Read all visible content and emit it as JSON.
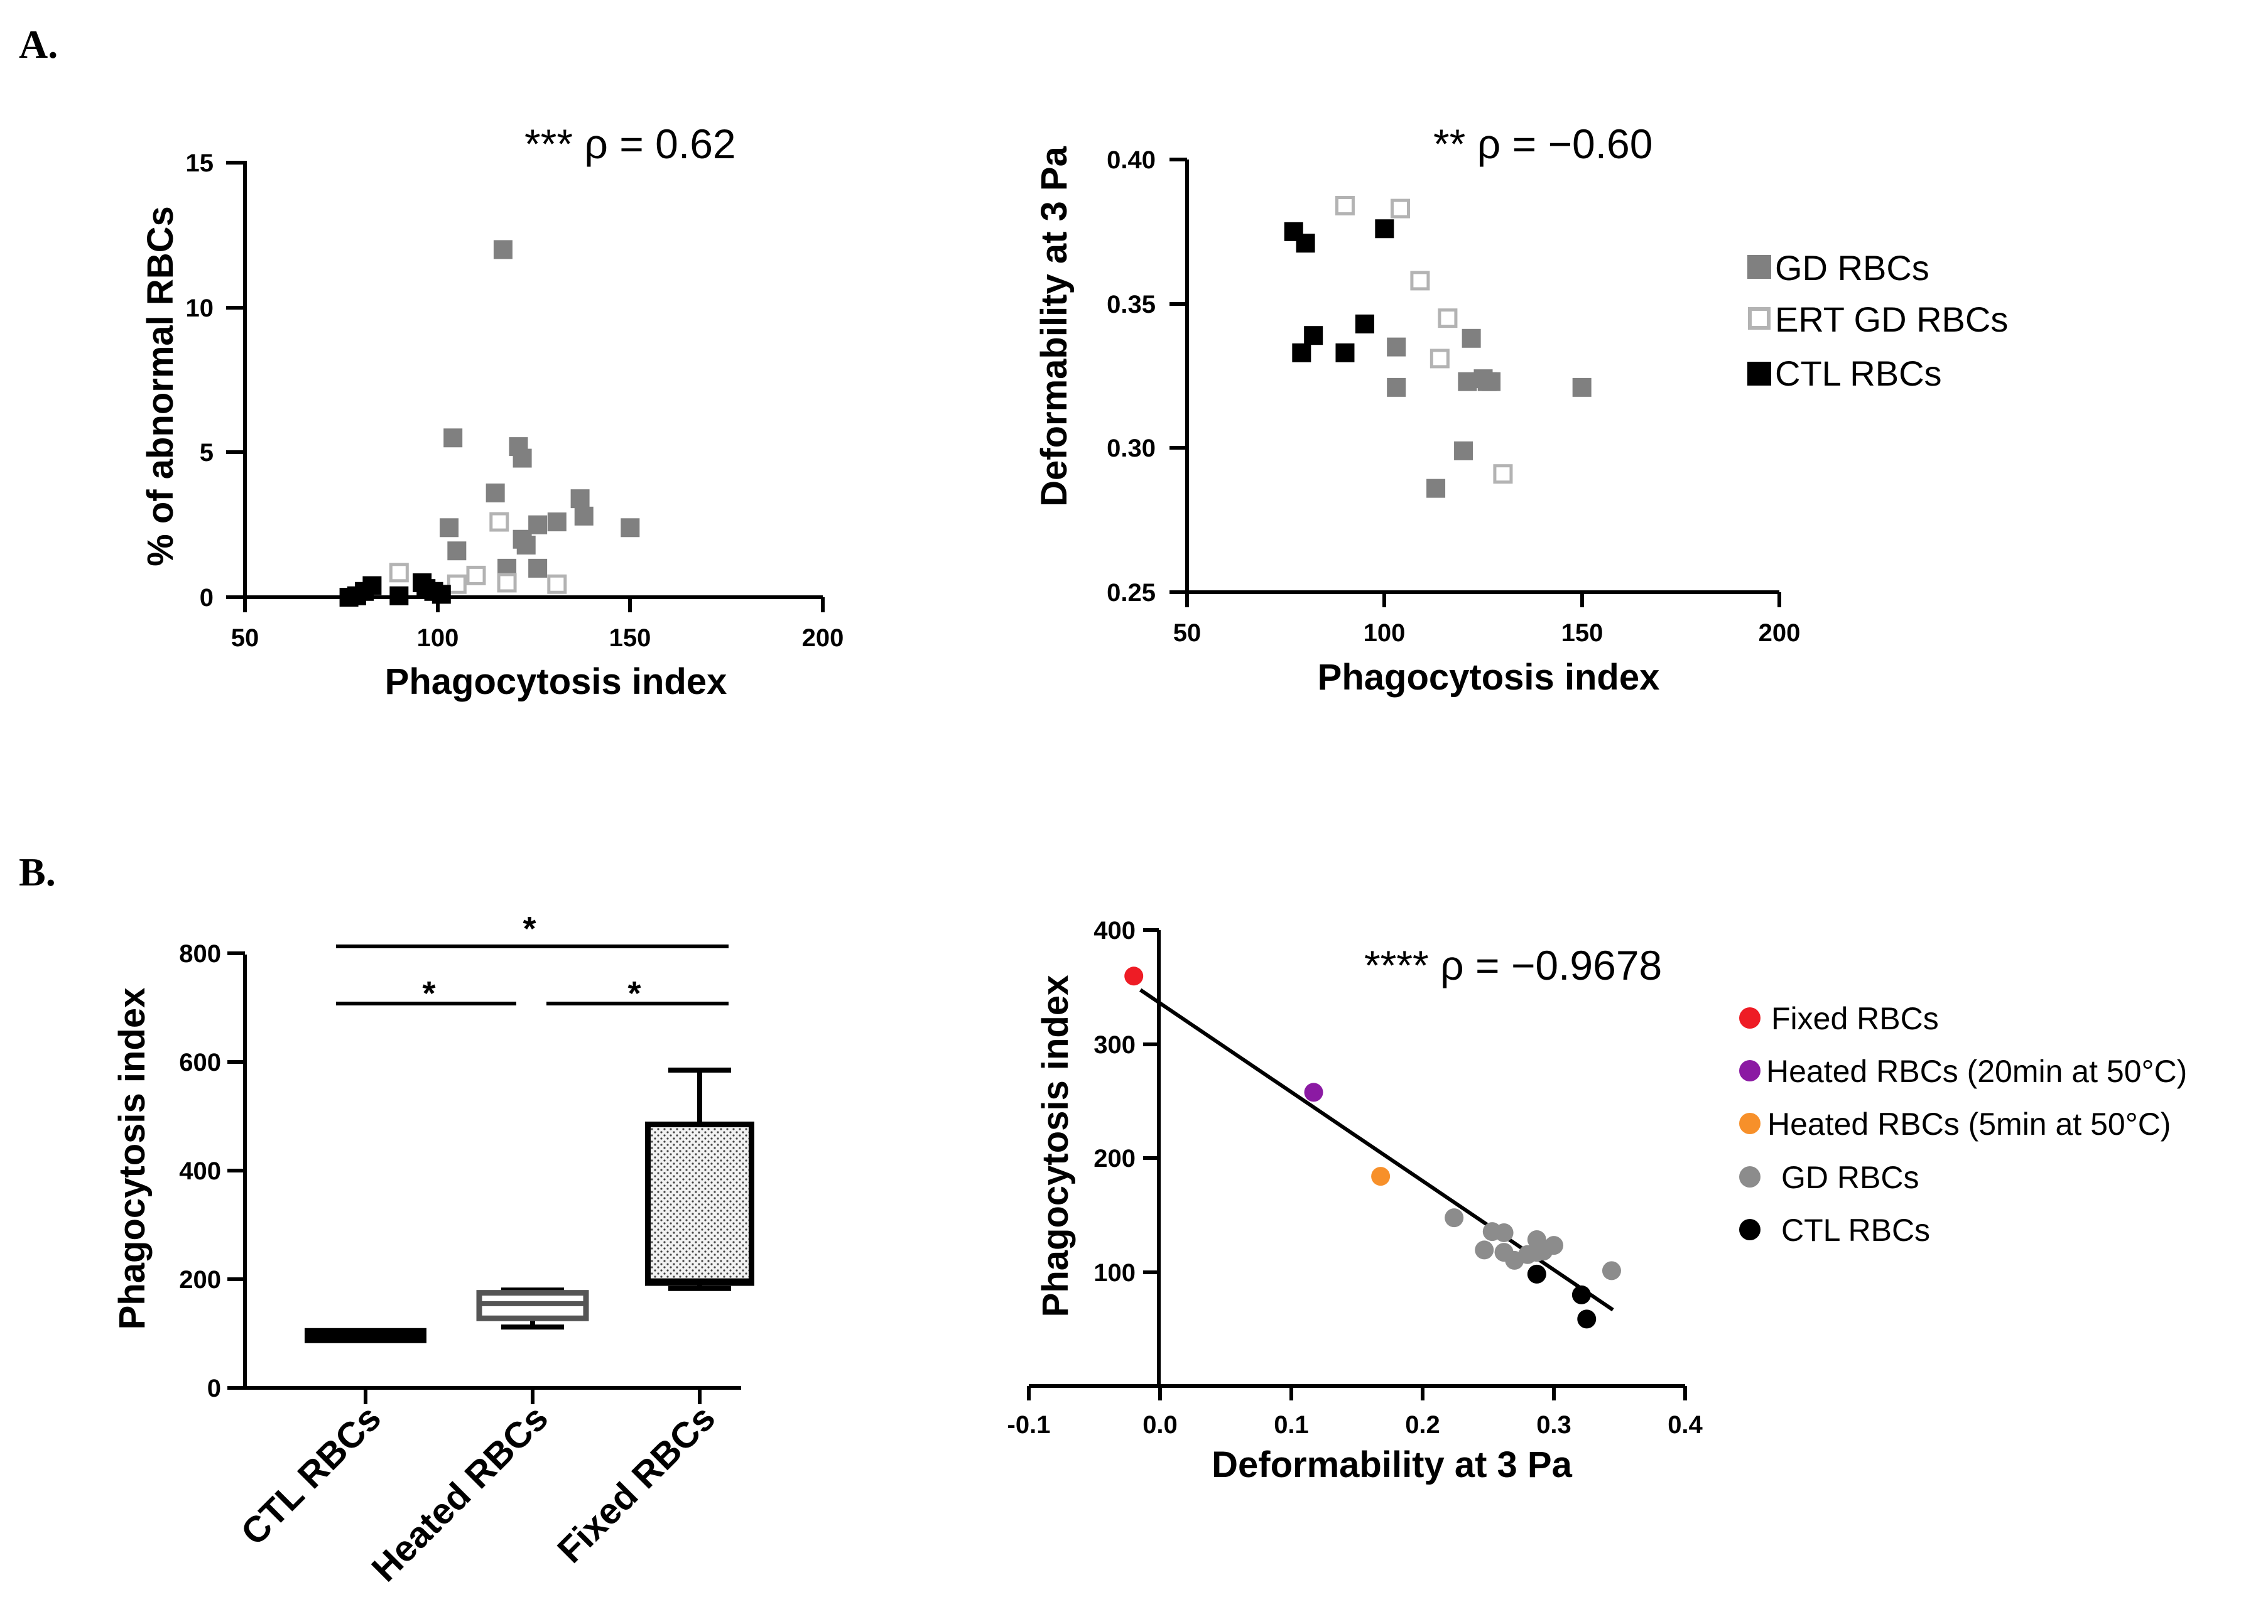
{
  "panel_labels": {
    "a": "A.",
    "b": "B."
  },
  "colors": {
    "gd": "#808080",
    "ert": "#b3b3b3",
    "ctl": "#000000",
    "fixed": "#ee1c25",
    "heated20": "#8b1aa3",
    "heated5": "#f7902a",
    "gd_b": "#8c8c8c"
  },
  "chart_data": [
    {
      "type": "scatter",
      "title": "*** ρ = 0.62",
      "xlabel": "Phagocytosis index",
      "ylabel": "% of abnormal RBCs",
      "xlim": [
        50,
        200
      ],
      "ylim": [
        0,
        15
      ],
      "xticks": [
        "50",
        "100",
        "150",
        "200"
      ],
      "yticks": [
        "0",
        "5",
        "10",
        "15"
      ],
      "series": [
        {
          "name": "GD RBCs",
          "marker": "filled-square",
          "points": [
            [
              117,
              12
            ],
            [
              104,
              5.5
            ],
            [
              121,
              5.2
            ],
            [
              122,
              4.8
            ],
            [
              115,
              3.6
            ],
            [
              137,
              3.4
            ],
            [
              138,
              2.8
            ],
            [
              150,
              2.4
            ],
            [
              103,
              2.4
            ],
            [
              126,
              2.5
            ],
            [
              131,
              2.6
            ],
            [
              122,
              2.0
            ],
            [
              123,
              1.8
            ],
            [
              105,
              1.6
            ],
            [
              118,
              1.0
            ],
            [
              126,
              1.0
            ]
          ]
        },
        {
          "name": "ERT GD RBCs",
          "marker": "open-square",
          "points": [
            [
              116,
              2.6
            ],
            [
              90,
              0.85
            ],
            [
              110,
              0.75
            ],
            [
              105,
              0.45
            ],
            [
              118,
              0.5
            ],
            [
              131,
              0.45
            ]
          ]
        },
        {
          "name": "CTL RBCs",
          "marker": "filled-square",
          "points": [
            [
              77,
              0
            ],
            [
              79,
              0.05
            ],
            [
              81,
              0.2
            ],
            [
              83,
              0.4
            ],
            [
              90,
              0.05
            ],
            [
              96,
              0.5
            ],
            [
              97,
              0.3
            ],
            [
              99,
              0.2
            ],
            [
              101,
              0.1
            ]
          ]
        }
      ]
    },
    {
      "type": "scatter",
      "title": "** ρ = −0.60",
      "xlabel": "Phagocytosis index",
      "ylabel": "Deformability at 3 Pa",
      "xlim": [
        50,
        200
      ],
      "ylim": [
        0.25,
        0.4
      ],
      "xticks": [
        "50",
        "100",
        "150",
        "200"
      ],
      "yticks": [
        "0.25",
        "0.30",
        "0.35",
        "0.40"
      ],
      "legend": [
        "GD RBCs",
        "ERT GD RBCs",
        "CTL RBCs"
      ],
      "series": [
        {
          "name": "GD RBCs",
          "marker": "filled-square",
          "points": [
            [
              103,
              0.335
            ],
            [
              103,
              0.321
            ],
            [
              121,
              0.323
            ],
            [
              122,
              0.338
            ],
            [
              125,
              0.324
            ],
            [
              126,
              0.323
            ],
            [
              127,
              0.323
            ],
            [
              150,
              0.321
            ],
            [
              120,
              0.299
            ],
            [
              113,
              0.286
            ]
          ]
        },
        {
          "name": "ERT GD RBCs",
          "marker": "open-square",
          "points": [
            [
              90,
              0.384
            ],
            [
              104,
              0.383
            ],
            [
              109,
              0.358
            ],
            [
              116,
              0.345
            ],
            [
              114,
              0.331
            ],
            [
              130,
              0.291
            ]
          ]
        },
        {
          "name": "CTL RBCs",
          "marker": "filled-square",
          "points": [
            [
              77,
              0.375
            ],
            [
              80,
              0.371
            ],
            [
              100,
              0.376
            ],
            [
              82,
              0.339
            ],
            [
              79,
              0.333
            ],
            [
              95,
              0.343
            ],
            [
              90,
              0.333
            ]
          ]
        }
      ]
    },
    {
      "type": "box",
      "ylabel": "Phagocytosis index",
      "ylim": [
        0,
        800
      ],
      "yticks": [
        "0",
        "200",
        "400",
        "600",
        "800"
      ],
      "categories": [
        "CTL RBCs",
        "Heated RBCs",
        "Fixed RBCs"
      ],
      "boxes": [
        {
          "min": 97,
          "q1": 98,
          "median": 100,
          "q3": 102,
          "max": 103
        },
        {
          "min": 112,
          "q1": 128,
          "median": 155,
          "q3": 175,
          "max": 180
        },
        {
          "min": 183,
          "q1": 193,
          "median": 197,
          "q3": 485,
          "max": 585
        }
      ],
      "significance": [
        {
          "from": 0,
          "to": 2,
          "label": "*"
        },
        {
          "from": 0,
          "to": 1,
          "label": "*"
        },
        {
          "from": 1,
          "to": 2,
          "label": "*"
        }
      ]
    },
    {
      "type": "scatter",
      "title": "**** ρ = −0.9678",
      "xlabel": "Deformability at 3 Pa",
      "ylabel": "Phagocytosis index",
      "xlim": [
        -0.1,
        0.4
      ],
      "ylim": [
        0,
        400
      ],
      "xticks": [
        "-0.1",
        "0.0",
        "0.1",
        "0.2",
        "0.3",
        "0.4"
      ],
      "yticks": [
        "100",
        "200",
        "300",
        "400"
      ],
      "legend": [
        "Fixed RBCs",
        "Heated RBCs (20min at 50°C)",
        "Heated RBCs (5min at 50°C)",
        "GD RBCs",
        "CTL RBCs"
      ],
      "fit_line": [
        [
          -0.015,
          348
        ],
        [
          0.345,
          70
        ]
      ],
      "series": [
        {
          "name": "Fixed RBCs",
          "points": [
            [
              -0.02,
              360
            ]
          ]
        },
        {
          "name": "Heated RBCs (20min at 50°C)",
          "points": [
            [
              0.117,
              259
            ]
          ]
        },
        {
          "name": "Heated RBCs (5min at 50°C)",
          "points": [
            [
              0.168,
              186
            ]
          ]
        },
        {
          "name": "GD RBCs",
          "points": [
            [
              0.224,
              150
            ],
            [
              0.247,
              122
            ],
            [
              0.253,
              138
            ],
            [
              0.262,
              137
            ],
            [
              0.262,
              120
            ],
            [
              0.27,
              113
            ],
            [
              0.28,
              118
            ],
            [
              0.287,
              131
            ],
            [
              0.289,
              123
            ],
            [
              0.292,
              121
            ],
            [
              0.3,
              126
            ],
            [
              0.287,
              120
            ],
            [
              0.344,
              104
            ]
          ]
        },
        {
          "name": "CTL RBCs",
          "points": [
            [
              0.287,
              101
            ],
            [
              0.321,
              83
            ],
            [
              0.325,
              62
            ]
          ]
        }
      ]
    }
  ]
}
